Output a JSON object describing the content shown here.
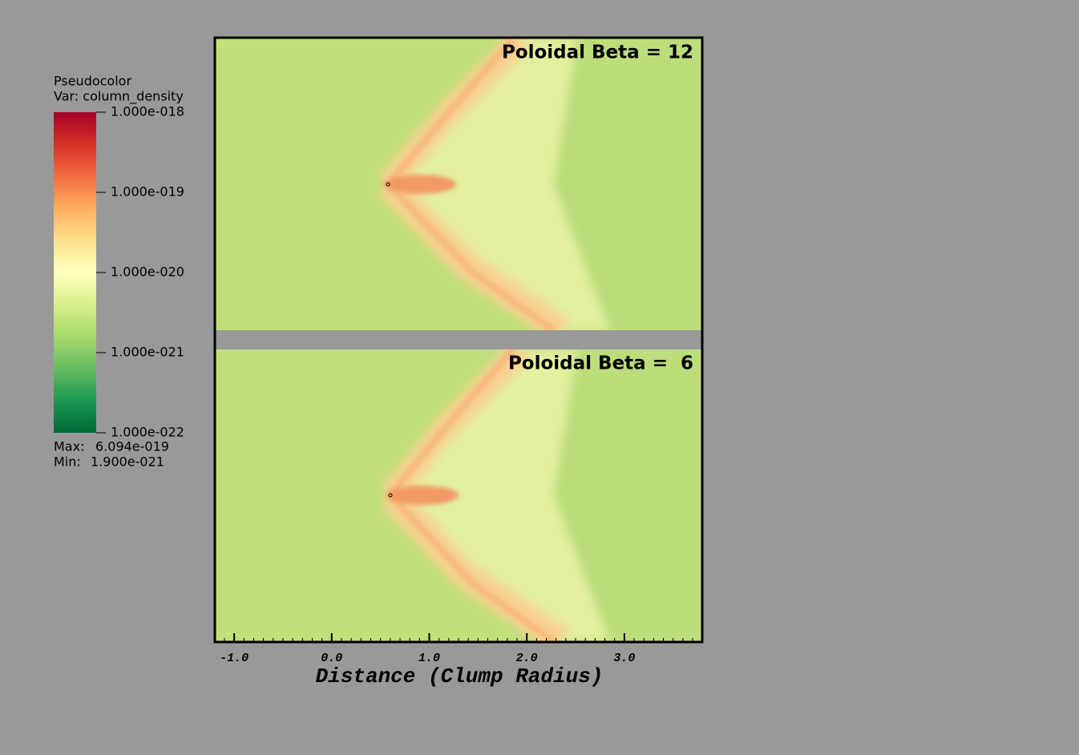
{
  "chart_data": {
    "type": "pseudocolor",
    "panels": [
      {
        "title": "Poloidal Beta = 12"
      },
      {
        "title": "Poloidal Beta =  6"
      }
    ],
    "xlabel": "Distance (Clump Radius)",
    "xlim": [
      -1.19,
      3.79
    ],
    "xticks": [
      {
        "value": -1,
        "label": "-1.0"
      },
      {
        "value": 0,
        "label": "0.0"
      },
      {
        "value": 1,
        "label": "1.0"
      },
      {
        "value": 2,
        "label": "2.0"
      },
      {
        "value": 3,
        "label": "3.0"
      }
    ],
    "colorbar": {
      "plot": "Pseudocolor",
      "variable": "Var: column_density",
      "scale": "log",
      "clim": [
        1e-22,
        1e-18
      ],
      "ticks": [
        {
          "value": 1e-18,
          "label": "1.000e-018"
        },
        {
          "value": 1e-19,
          "label": "1.000e-019"
        },
        {
          "value": 1e-20,
          "label": "1.000e-020"
        },
        {
          "value": 1e-21,
          "label": "1.000e-021"
        },
        {
          "value": 1e-22,
          "label": "1.000e-022"
        }
      ],
      "colors": [
        "#006837",
        "#1a9850",
        "#66bd63",
        "#a6d96a",
        "#d9ef8b",
        "#ffffbf",
        "#fee08b",
        "#fdae61",
        "#f46d43",
        "#d73027",
        "#a50026"
      ],
      "max_label": "Max:",
      "max": {
        "value": 6.094e-19,
        "label": "6.094e-019"
      },
      "min_label": "Min:",
      "min": {
        "value": 1.9e-21,
        "label": "1.900e-021"
      }
    }
  }
}
